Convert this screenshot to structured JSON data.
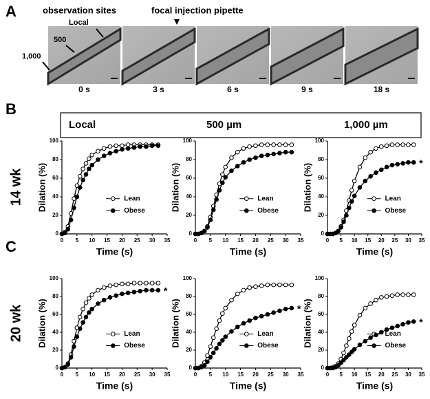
{
  "panel_labels": [
    "A",
    "B",
    "C"
  ],
  "panel_a": {
    "observation_label": "observation sites",
    "pipette_label": "focal injection pipette",
    "site_labels": [
      "Local",
      "500",
      "1,000"
    ],
    "times": [
      "0 s",
      "3 s",
      "6 s",
      "9 s",
      "18 s"
    ]
  },
  "panel_b": {
    "headers": [
      "Local",
      "500 µm",
      "1,000 µm"
    ]
  },
  "row_labels": [
    "14 wk",
    "20 wk"
  ],
  "chart_data": [
    {
      "type": "line",
      "xlabel": "Time (s)",
      "ylabel": "Dilation (%)",
      "xlim": [
        0,
        35
      ],
      "xticks": [
        0,
        5,
        10,
        15,
        20,
        25,
        30,
        35
      ],
      "ylim": [
        0,
        100
      ],
      "yticks": [
        0,
        20,
        40,
        60,
        80,
        100
      ],
      "legend": "lower right",
      "x": [
        0,
        1,
        2,
        3,
        4,
        5,
        6,
        7,
        8,
        9,
        10,
        12,
        14,
        16,
        18,
        20,
        22,
        24,
        26,
        28,
        30,
        32
      ],
      "series": [
        {
          "name": "Lean",
          "color": "#000000",
          "marker": "open",
          "values": [
            0,
            2,
            8,
            22,
            38,
            52,
            62,
            70,
            76,
            81,
            85,
            89,
            92,
            94,
            95,
            95,
            96,
            96,
            96,
            96,
            96,
            96
          ]
        },
        {
          "name": "Obese",
          "color": "#000000",
          "marker": "filled",
          "values": [
            0,
            1,
            5,
            15,
            28,
            40,
            50,
            58,
            64,
            70,
            74,
            80,
            84,
            87,
            89,
            91,
            92,
            93,
            94,
            94,
            95,
            95
          ]
        }
      ]
    },
    {
      "type": "line",
      "xlabel": "Time (s)",
      "ylabel": "Dilation (%)",
      "xlim": [
        0,
        35
      ],
      "xticks": [
        0,
        5,
        10,
        15,
        20,
        25,
        30,
        35
      ],
      "ylim": [
        0,
        100
      ],
      "yticks": [
        0,
        20,
        40,
        60,
        80,
        100
      ],
      "legend": "lower right",
      "x": [
        0,
        1,
        2,
        3,
        4,
        5,
        6,
        7,
        8,
        9,
        10,
        12,
        14,
        16,
        18,
        20,
        22,
        24,
        26,
        28,
        30,
        32
      ],
      "series": [
        {
          "name": "Lean",
          "color": "#000000",
          "marker": "open",
          "values": [
            0,
            0,
            1,
            3,
            8,
            18,
            30,
            42,
            54,
            64,
            72,
            82,
            88,
            92,
            94,
            95,
            96,
            96,
            96,
            96,
            96,
            96
          ]
        },
        {
          "name": "Obese",
          "color": "#000000",
          "marker": "filled",
          "values": [
            0,
            0,
            1,
            3,
            7,
            15,
            26,
            37,
            47,
            55,
            61,
            68,
            73,
            77,
            80,
            82,
            84,
            85,
            86,
            87,
            88,
            88
          ]
        }
      ]
    },
    {
      "type": "line",
      "xlabel": "Time (s)",
      "ylabel": "Dilation (%)",
      "xlim": [
        0,
        35
      ],
      "xticks": [
        0,
        5,
        10,
        15,
        20,
        25,
        30,
        35
      ],
      "ylim": [
        0,
        100
      ],
      "yticks": [
        0,
        20,
        40,
        60,
        80,
        100
      ],
      "legend": "lower right",
      "annotation": "*",
      "x": [
        0,
        1,
        2,
        3,
        4,
        5,
        6,
        7,
        8,
        9,
        10,
        12,
        14,
        16,
        18,
        20,
        22,
        24,
        26,
        28,
        30,
        32
      ],
      "series": [
        {
          "name": "Lean",
          "color": "#000000",
          "marker": "open",
          "values": [
            0,
            0,
            0,
            1,
            3,
            8,
            15,
            25,
            36,
            47,
            57,
            72,
            82,
            88,
            92,
            94,
            95,
            96,
            96,
            96,
            96,
            96
          ]
        },
        {
          "name": "Obese",
          "color": "#000000",
          "marker": "filled",
          "values": [
            0,
            0,
            0,
            1,
            3,
            7,
            13,
            20,
            28,
            35,
            41,
            50,
            57,
            62,
            66,
            69,
            72,
            74,
            75,
            76,
            77,
            77
          ]
        }
      ]
    },
    {
      "type": "line",
      "xlabel": "Time (s)",
      "ylabel": "Dilation (%)",
      "xlim": [
        0,
        35
      ],
      "xticks": [
        0,
        5,
        10,
        15,
        20,
        25,
        30,
        35
      ],
      "ylim": [
        0,
        100
      ],
      "yticks": [
        0,
        20,
        40,
        60,
        80,
        100
      ],
      "legend": "lower right",
      "annotation": "*",
      "x": [
        0,
        1,
        2,
        3,
        4,
        5,
        6,
        7,
        8,
        9,
        10,
        12,
        14,
        16,
        18,
        20,
        22,
        24,
        26,
        28,
        30,
        32
      ],
      "series": [
        {
          "name": "Lean",
          "color": "#000000",
          "marker": "open",
          "values": [
            0,
            1,
            5,
            15,
            30,
            45,
            57,
            66,
            73,
            78,
            82,
            87,
            90,
            92,
            93,
            94,
            94,
            95,
            95,
            95,
            95,
            95
          ]
        },
        {
          "name": "Obese",
          "color": "#000000",
          "marker": "filled",
          "values": [
            0,
            1,
            4,
            12,
            24,
            35,
            44,
            51,
            57,
            62,
            66,
            72,
            76,
            79,
            81,
            83,
            84,
            85,
            86,
            87,
            87,
            87
          ]
        }
      ]
    },
    {
      "type": "line",
      "xlabel": "Time (s)",
      "ylabel": "Dilation (%)",
      "xlim": [
        0,
        35
      ],
      "xticks": [
        0,
        5,
        10,
        15,
        20,
        25,
        30,
        35
      ],
      "ylim": [
        0,
        100
      ],
      "yticks": [
        0,
        20,
        40,
        60,
        80,
        100
      ],
      "legend": "lower right",
      "annotation": "*",
      "x": [
        0,
        1,
        2,
        3,
        4,
        5,
        6,
        7,
        8,
        9,
        10,
        12,
        14,
        16,
        18,
        20,
        22,
        24,
        26,
        28,
        30,
        32
      ],
      "series": [
        {
          "name": "Lean",
          "color": "#000000",
          "marker": "open",
          "values": [
            0,
            0,
            2,
            6,
            14,
            24,
            34,
            44,
            53,
            61,
            67,
            76,
            83,
            87,
            90,
            91,
            92,
            93,
            93,
            93,
            93,
            93
          ]
        },
        {
          "name": "Obese",
          "color": "#000000",
          "marker": "filled",
          "values": [
            0,
            0,
            1,
            3,
            7,
            12,
            17,
            22,
            27,
            31,
            35,
            41,
            46,
            50,
            53,
            56,
            58,
            60,
            62,
            64,
            66,
            67
          ]
        }
      ]
    },
    {
      "type": "line",
      "xlabel": "Time (s)",
      "ylabel": "Dilation (%)",
      "xlim": [
        0,
        35
      ],
      "xticks": [
        0,
        5,
        10,
        15,
        20,
        25,
        30,
        35
      ],
      "ylim": [
        0,
        100
      ],
      "yticks": [
        0,
        20,
        40,
        60,
        80,
        100
      ],
      "legend": "lower right",
      "annotation": "*",
      "x": [
        0,
        1,
        2,
        3,
        4,
        5,
        6,
        7,
        8,
        9,
        10,
        12,
        14,
        16,
        18,
        20,
        22,
        24,
        26,
        28,
        30,
        32
      ],
      "series": [
        {
          "name": "Lean",
          "color": "#000000",
          "marker": "open",
          "values": [
            0,
            0,
            1,
            2,
            5,
            10,
            17,
            25,
            33,
            41,
            48,
            59,
            67,
            72,
            76,
            79,
            80,
            81,
            82,
            82,
            82,
            82
          ]
        },
        {
          "name": "Obese",
          "color": "#000000",
          "marker": "filled",
          "values": [
            0,
            0,
            0,
            1,
            3,
            6,
            9,
            12,
            15,
            18,
            21,
            26,
            30,
            34,
            37,
            40,
            43,
            45,
            47,
            49,
            51,
            52
          ]
        }
      ]
    }
  ]
}
